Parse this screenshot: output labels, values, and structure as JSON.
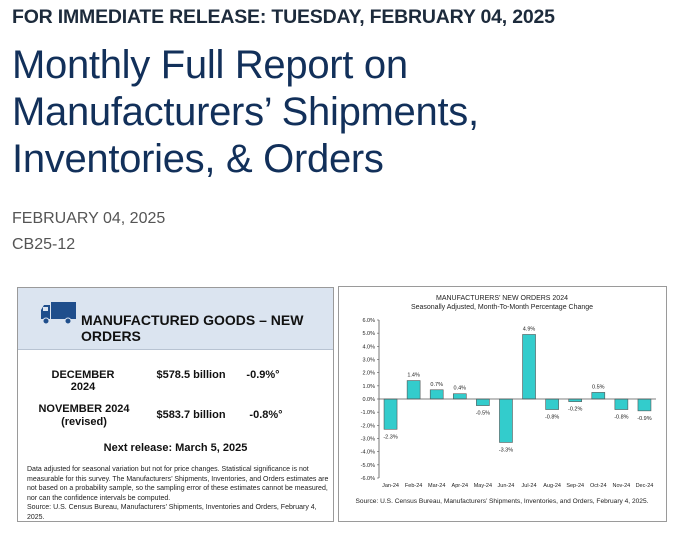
{
  "header": {
    "release_line": "FOR IMMEDIATE RELEASE: TUESDAY, FEBRUARY 04, 2025",
    "title": "Monthly Full Report on Manufacturers’ Shipments, Inventories, & Orders",
    "date": "FEBRUARY 04, 2025",
    "release_code": "CB25-12"
  },
  "summary": {
    "icon": "truck-icon",
    "title": "MANUFACTURED GOODS – NEW ORDERS",
    "rows": [
      {
        "period": "DECEMBER 2024",
        "period_note": "",
        "value": "$578.5 billion",
        "change": "-0.9%°"
      },
      {
        "period": "NOVEMBER 2024",
        "period_note": "(revised)",
        "value": "$583.7 billion",
        "change": "-0.8%°"
      }
    ],
    "next_release": "Next release: March 5, 2025",
    "note": "Data adjusted for seasonal variation but not for price changes. Statistical significance is not measurable for this survey.  The Manufacturers’ Shipments, Inventories, and Orders estimates are not based on a probability sample, so the sampling error of these estimates cannot be measured, nor can the confidence intervals be computed.",
    "source": "Source: U.S. Census Bureau, Manufacturers’ Shipments, Inventories and Orders, February 4, 2025.",
    "colors": {
      "header_bg": "#dbe4f0",
      "icon": "#1f4e8c"
    }
  },
  "chart_data": {
    "type": "bar",
    "title": "MANUFACTURERS’ NEW ORDERS 2024",
    "subtitle": "Seasonally Adjusted,  Month-To-Month Percentage Change",
    "categories": [
      "Jan-24",
      "Feb-24",
      "Mar-24",
      "Apr-24",
      "May-24",
      "Jun-24",
      "Jul-24",
      "Aug-24",
      "Sep-24",
      "Oct-24",
      "Nov-24",
      "Dec-24"
    ],
    "values": [
      -2.3,
      1.4,
      0.7,
      0.4,
      -0.5,
      -3.3,
      4.9,
      -0.8,
      -0.2,
      0.5,
      -0.8,
      -0.9
    ],
    "data_labels": [
      "-2.3%",
      "1.4%",
      "0.7%",
      "0.4%",
      "-0.5%",
      "-3.3%",
      "4.9%",
      "-0.8%",
      "-0.2%",
      "0.5%",
      "-0.8%",
      "-0.9%"
    ],
    "ylim": [
      -6,
      6
    ],
    "yticks": [
      "6.0%",
      "5.0%",
      "4.0%",
      "3.0%",
      "2.0%",
      "1.0%",
      "0.0%",
      "-1.0%",
      "-2.0%",
      "-3.0%",
      "-4.0%",
      "-5.0%",
      "-6.0%"
    ],
    "grid": false,
    "bar_color": "#33cccc",
    "source": "Source: U.S. Census Bureau, Manufacturers’ Shipments, Inventories, and Orders, February 4, 2025."
  }
}
